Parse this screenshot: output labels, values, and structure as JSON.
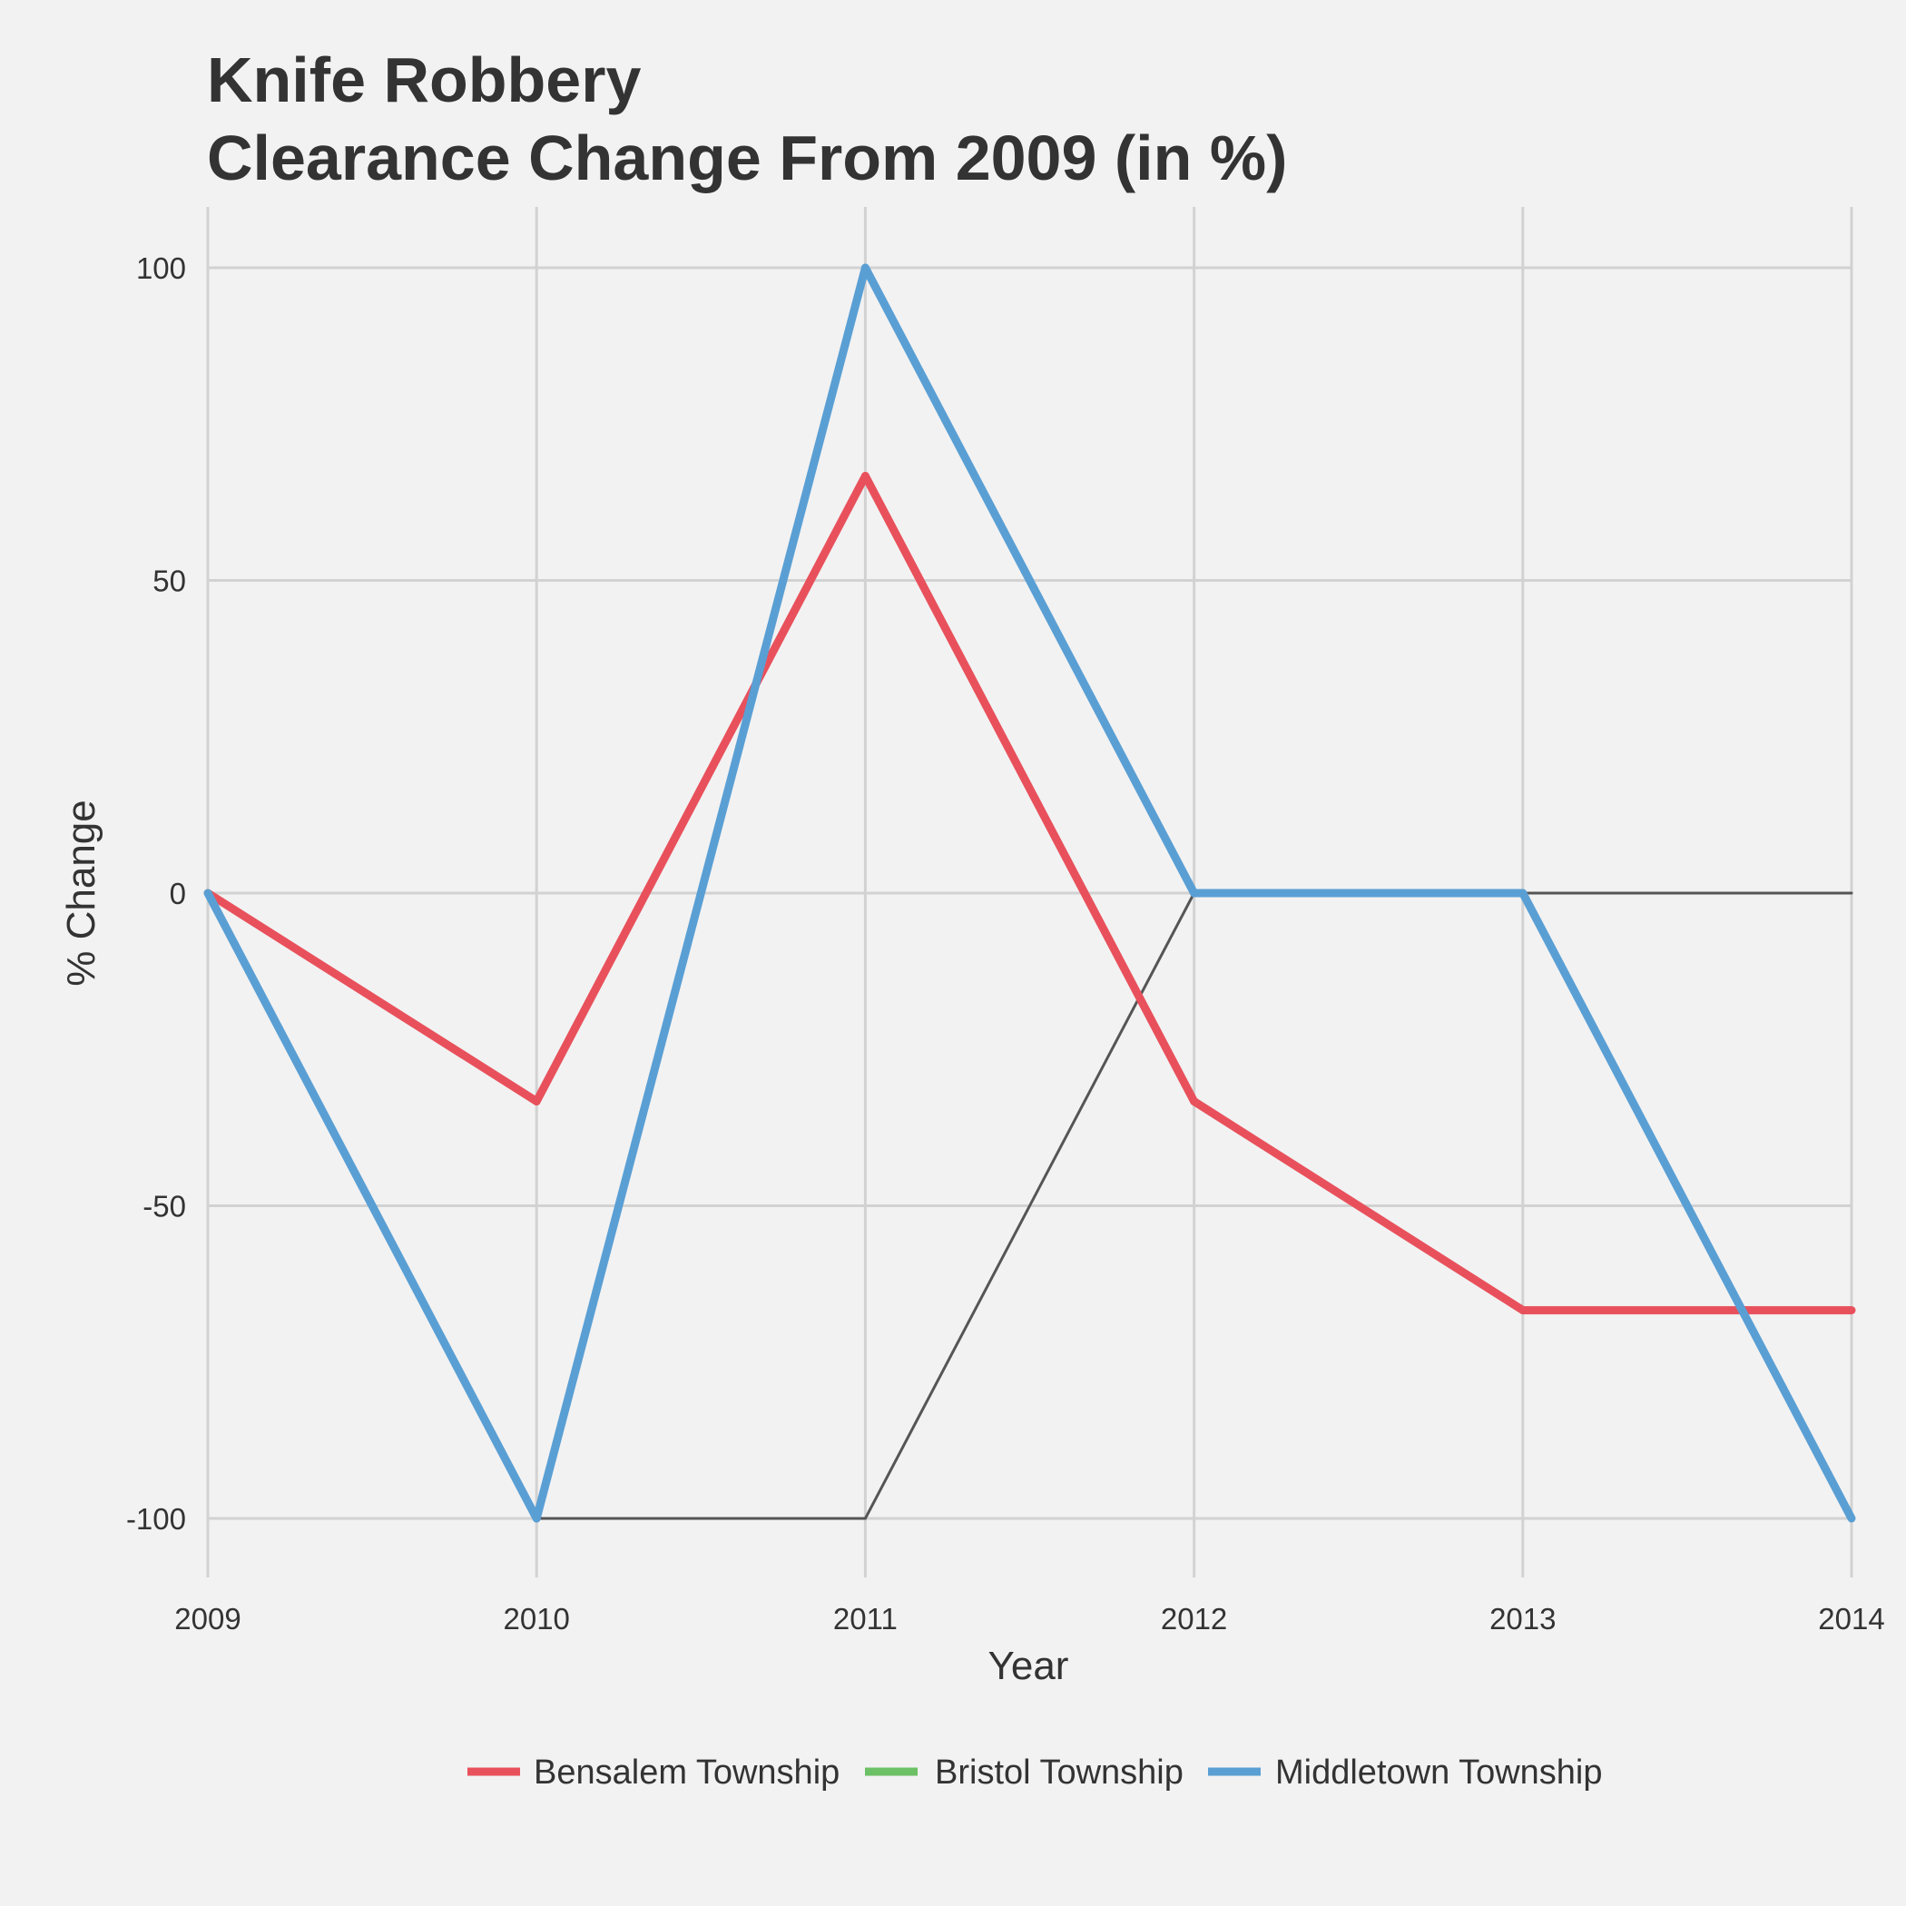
{
  "chart_data": {
    "type": "line",
    "title_lines": [
      "Knife Robbery",
      "Clearance Change From 2009 (in %)"
    ],
    "xlabel": "Year",
    "ylabel": "% Change",
    "x": [
      2009,
      2010,
      2011,
      2012,
      2013,
      2014
    ],
    "xticks": [
      "2009",
      "2010",
      "2011",
      "2012",
      "2013",
      "2014"
    ],
    "yticks": [
      100,
      50,
      0,
      -50,
      -100
    ],
    "ytick_labels": [
      "100",
      "50",
      "0",
      "-50",
      "-100"
    ],
    "ylim": [
      -110,
      110
    ],
    "xlim": [
      2009,
      2014
    ],
    "grid": true,
    "legend_position": "bottom",
    "series": [
      {
        "name": "Bensalem Township",
        "color": "#e8515c",
        "values": [
          0,
          -33.3,
          66.7,
          -33.3,
          -66.7,
          -66.7
        ]
      },
      {
        "name": "Bristol Township",
        "color": "#6cc065",
        "values": [
          0,
          -100,
          -100,
          0,
          0,
          0
        ]
      },
      {
        "name": "Middletown Township",
        "color": "#5a9fd4",
        "values": [
          0,
          -100,
          100,
          0,
          0,
          -100
        ]
      }
    ]
  }
}
